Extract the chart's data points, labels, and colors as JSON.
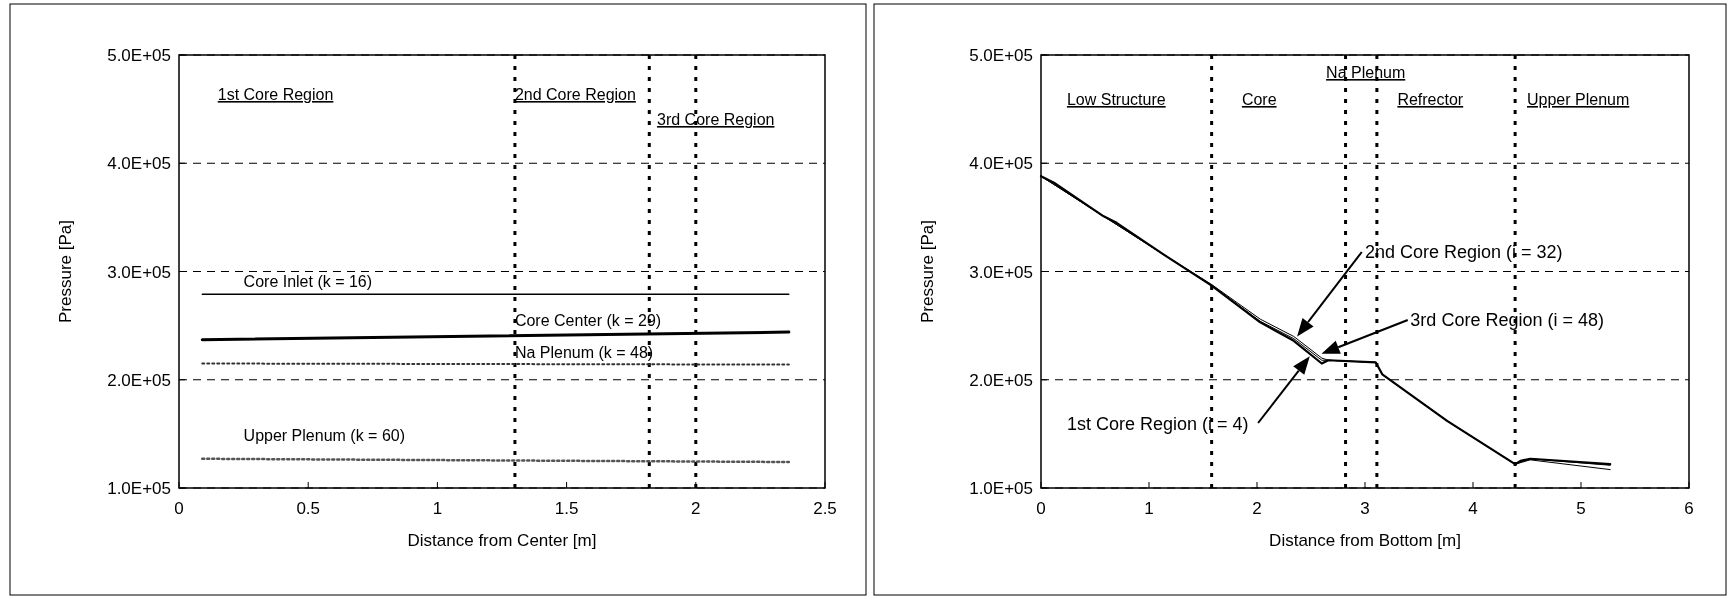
{
  "chart_data": [
    {
      "type": "line",
      "xlabel": "Distance from Center [m]",
      "ylabel": "Pressure [Pa]",
      "xlim": [
        0,
        2.5
      ],
      "xticks": [
        0,
        0.5,
        1,
        1.5,
        2,
        2.5
      ],
      "ylim": [
        100000,
        500000
      ],
      "yticks": [
        {
          "value": 100000,
          "label": "1.0E+05"
        },
        {
          "value": 200000,
          "label": "2.0E+05"
        },
        {
          "value": 300000,
          "label": "3.0E+05"
        },
        {
          "value": 400000,
          "label": "4.0E+05"
        },
        {
          "value": 500000,
          "label": "5.0E+05"
        }
      ],
      "grid": "y",
      "legend": false,
      "marker": "none",
      "series": [
        {
          "name": "Core Inlet (k = 16)",
          "color": "#000000",
          "line_style": "solid",
          "x": [
            0.09,
            2.36
          ],
          "values": [
            279000,
            279000
          ]
        },
        {
          "name": "Core Center (k = 29)",
          "color": "#000000",
          "line_style": "solid",
          "x": [
            0.09,
            2.36
          ],
          "values": [
            237000,
            244000
          ]
        },
        {
          "name": "Na Plenum (k = 48)",
          "color": "#333333",
          "line_style": "dotted",
          "x": [
            0.09,
            2.36
          ],
          "values": [
            215000,
            214000
          ]
        },
        {
          "name": "Upper Plenum (k = 60)",
          "color": "#555555",
          "line_style": "dotted",
          "x": [
            0.09,
            2.36
          ],
          "values": [
            127000,
            124000
          ]
        }
      ],
      "ref_lines": [
        {
          "axis": "x",
          "value": 1.3,
          "line_style": "dotted"
        },
        {
          "axis": "x",
          "value": 1.82,
          "line_style": "dotted"
        },
        {
          "axis": "x",
          "value": 2.0,
          "line_style": "dotted"
        }
      ],
      "annotations": [
        "1st Core Region",
        "2nd Core Region",
        "3rd Core Region"
      ]
    },
    {
      "type": "line",
      "xlabel": "Distance from Bottom [m]",
      "ylabel": "Pressure [Pa]",
      "xlim": [
        0,
        6
      ],
      "xticks": [
        0,
        1,
        2,
        3,
        4,
        5,
        6
      ],
      "ylim": [
        100000,
        500000
      ],
      "yticks": [
        {
          "value": 100000,
          "label": "1.0E+05"
        },
        {
          "value": 200000,
          "label": "2.0E+05"
        },
        {
          "value": 300000,
          "label": "3.0E+05"
        },
        {
          "value": 400000,
          "label": "4.0E+05"
        },
        {
          "value": 500000,
          "label": "5.0E+05"
        }
      ],
      "grid": "y",
      "legend": false,
      "marker": "none",
      "series": [
        {
          "color": "#000000",
          "line_style": "solid",
          "x": [
            0,
            0.12,
            0.58,
            0.7,
            1.13,
            1.58,
            2.03,
            2.34,
            2.6,
            2.66,
            3.1,
            3.16,
            3.76,
            4.39,
            4.44,
            4.53,
            5.27
          ],
          "values": [
            388000,
            382000,
            351000,
            345000,
            316000,
            287000,
            253000,
            236000,
            215000,
            218000,
            216000,
            205000,
            162000,
            122000,
            125000,
            127000,
            122000
          ]
        },
        {
          "color": "#000000",
          "line_style": "solid",
          "x": [
            0,
            0.58,
            1.13,
            1.58,
            2.03,
            2.34,
            2.6,
            2.66,
            3.1,
            3.16,
            3.76,
            4.39,
            4.53,
            5.27
          ],
          "values": [
            388000,
            351000,
            316000,
            288000,
            256000,
            240000,
            220000,
            218000,
            216000,
            205000,
            162000,
            122000,
            127000,
            121000
          ]
        },
        {
          "color": "#000000",
          "line_style": "solid",
          "x": [
            0,
            0.58,
            1.13,
            1.58,
            2.03,
            2.34,
            2.6,
            2.66,
            3.1,
            3.16,
            3.76,
            4.39,
            4.53,
            5.27
          ],
          "values": [
            388000,
            351000,
            316000,
            287000,
            254000,
            238000,
            218000,
            218000,
            216000,
            205000,
            162000,
            122000,
            126000,
            117000
          ]
        }
      ],
      "ref_lines": [
        {
          "axis": "x",
          "value": 1.58,
          "line_style": "dotted"
        },
        {
          "axis": "x",
          "value": 2.82,
          "line_style": "dotted"
        },
        {
          "axis": "x",
          "value": 3.11,
          "line_style": "dotted"
        },
        {
          "axis": "x",
          "value": 4.39,
          "line_style": "dotted"
        }
      ],
      "annotations": [
        "Low Structure",
        "Core",
        "Na Plenum",
        "Refrector",
        "Upper Plenum",
        "1st Core Region (i = 4)",
        "2nd Core Region (i = 32)",
        "3rd Core Region (i = 48)"
      ]
    }
  ]
}
